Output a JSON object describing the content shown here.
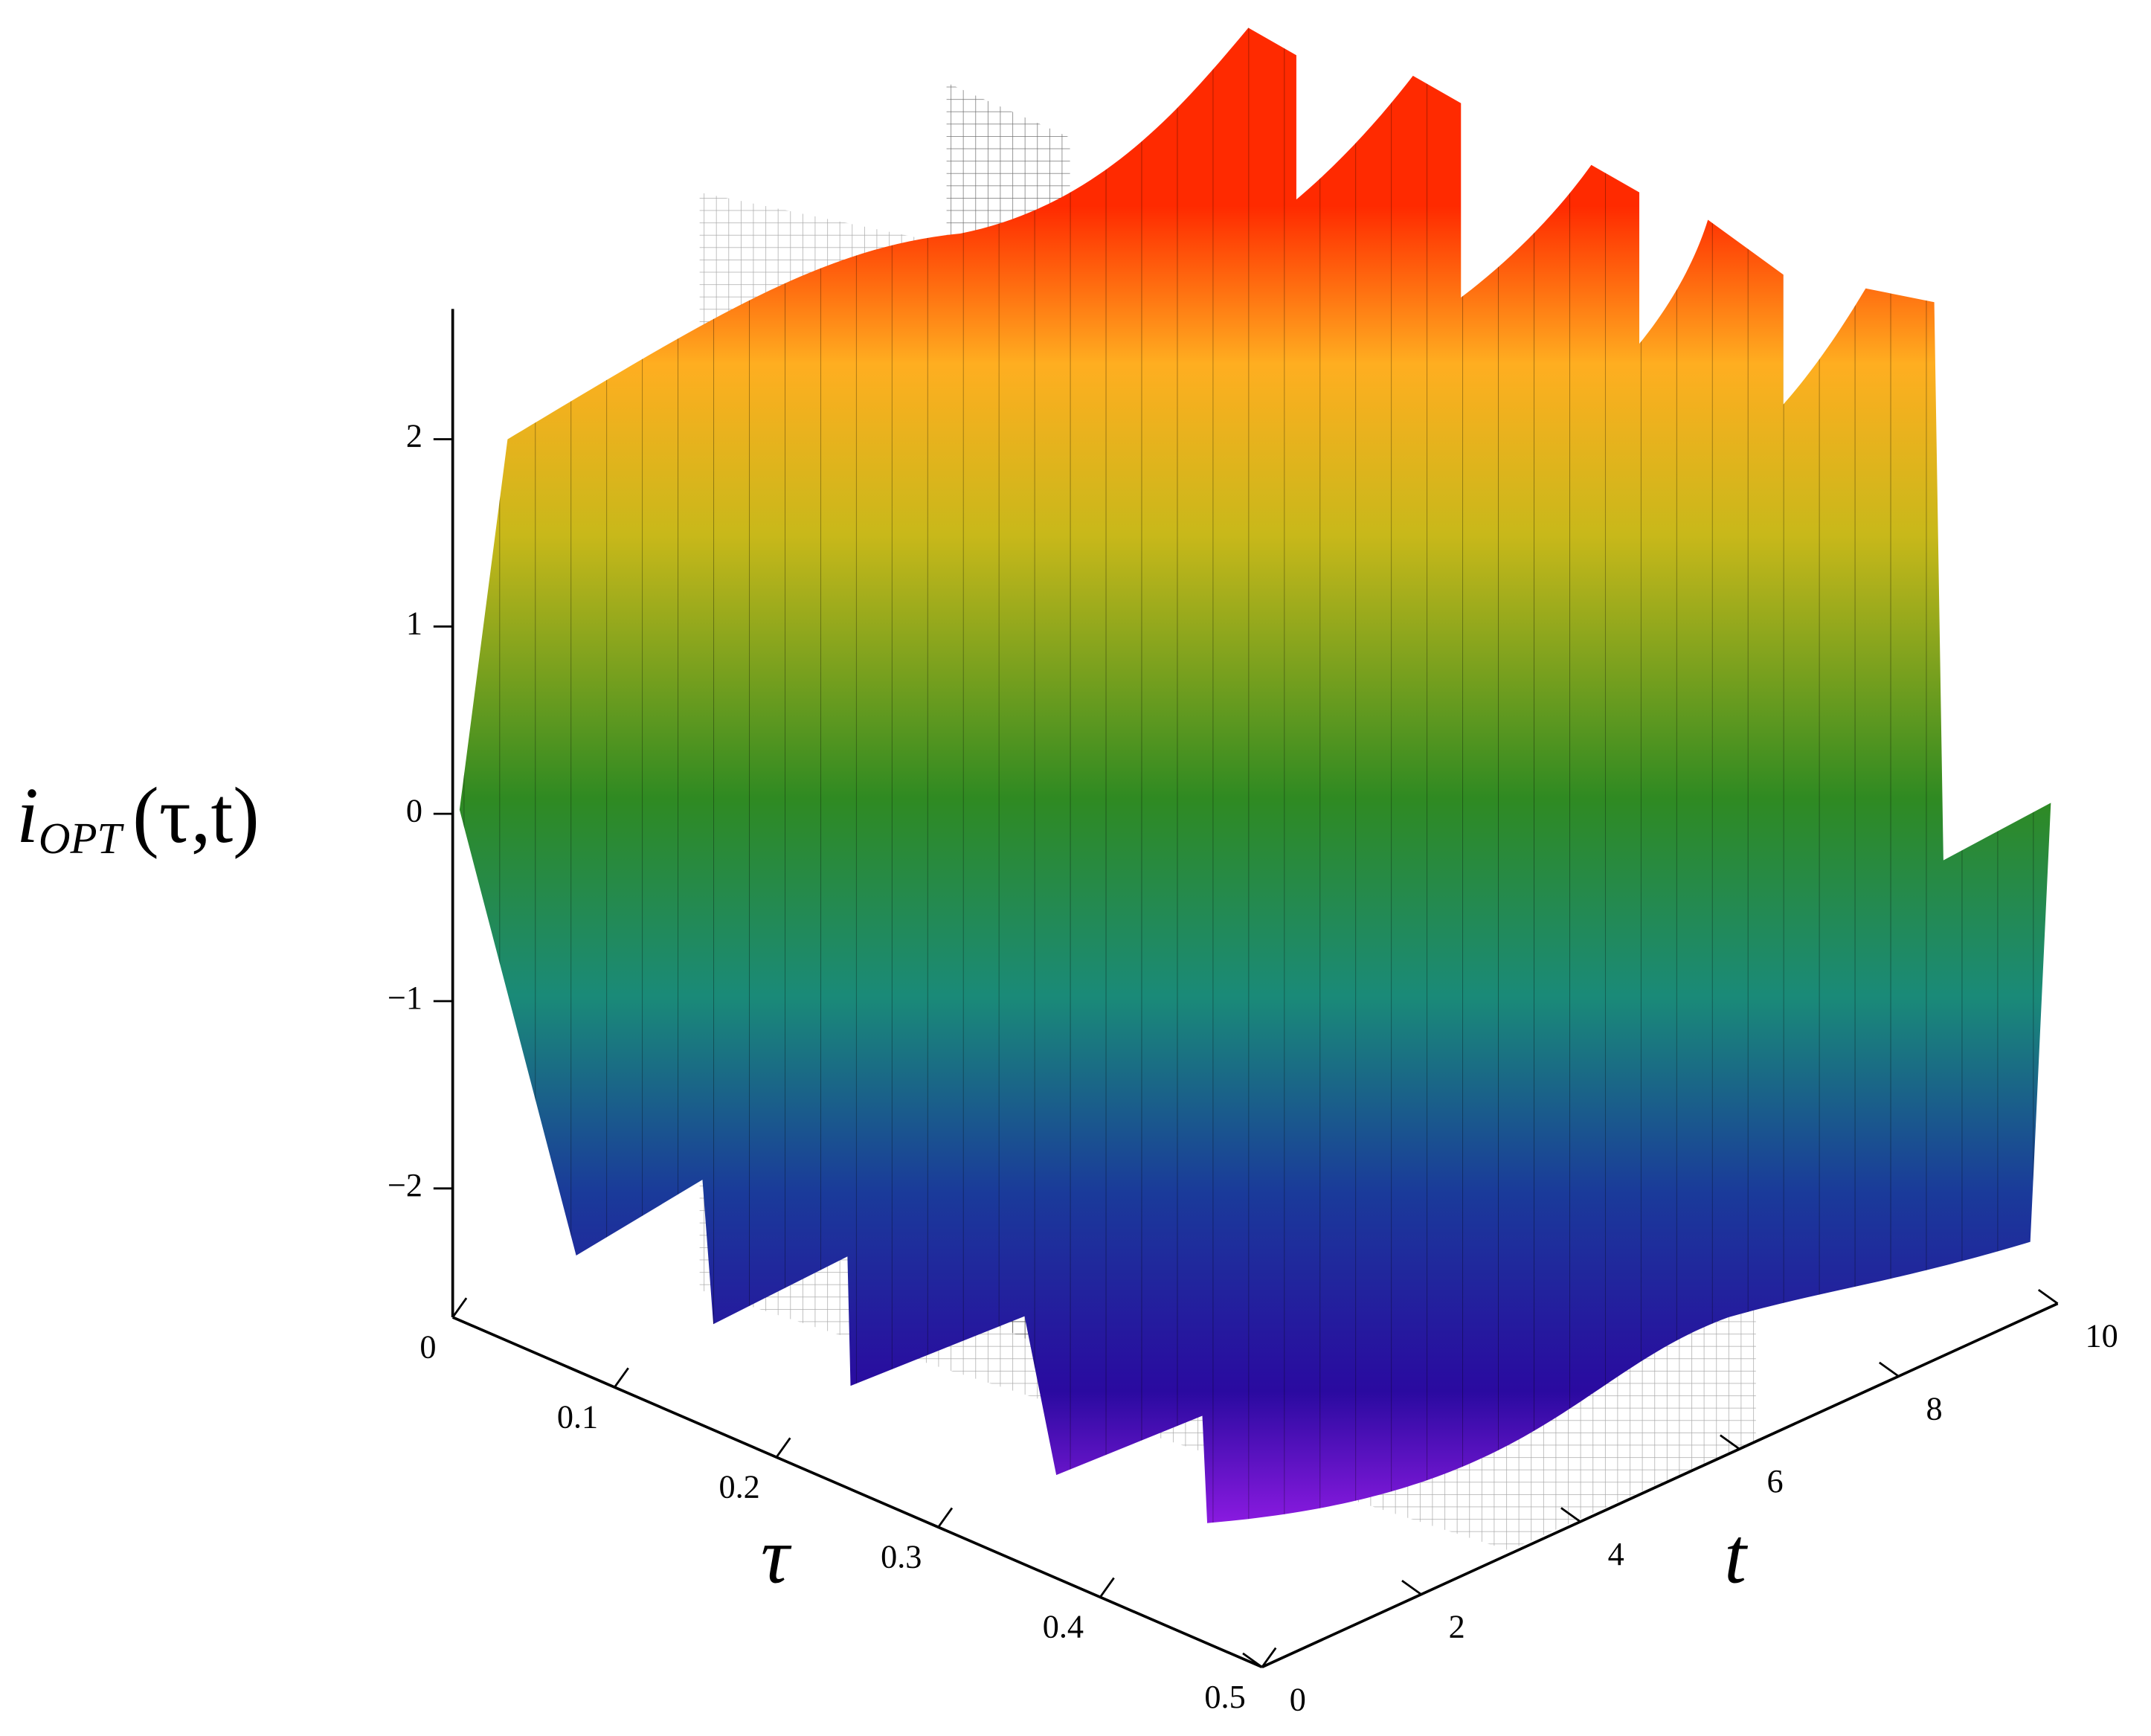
{
  "chart_data": {
    "type": "surface3d",
    "z_label": "i",
    "z_label_sub": "OPT",
    "z_label_args": "(τ,t)",
    "x_label": "τ",
    "y_label": "t",
    "xlim": [
      0,
      0.5
    ],
    "xticks": [
      0,
      0.1,
      0.2,
      0.3,
      0.4,
      0.5
    ],
    "ylim": [
      0,
      10
    ],
    "yticks": [
      0,
      2,
      4,
      6,
      8,
      10
    ],
    "zlim": [
      -2.6,
      2.6
    ],
    "zticks": [
      {
        "value": -2,
        "label": "−2"
      },
      {
        "value": -1,
        "label": "−1"
      },
      0,
      1,
      2
    ]
  }
}
